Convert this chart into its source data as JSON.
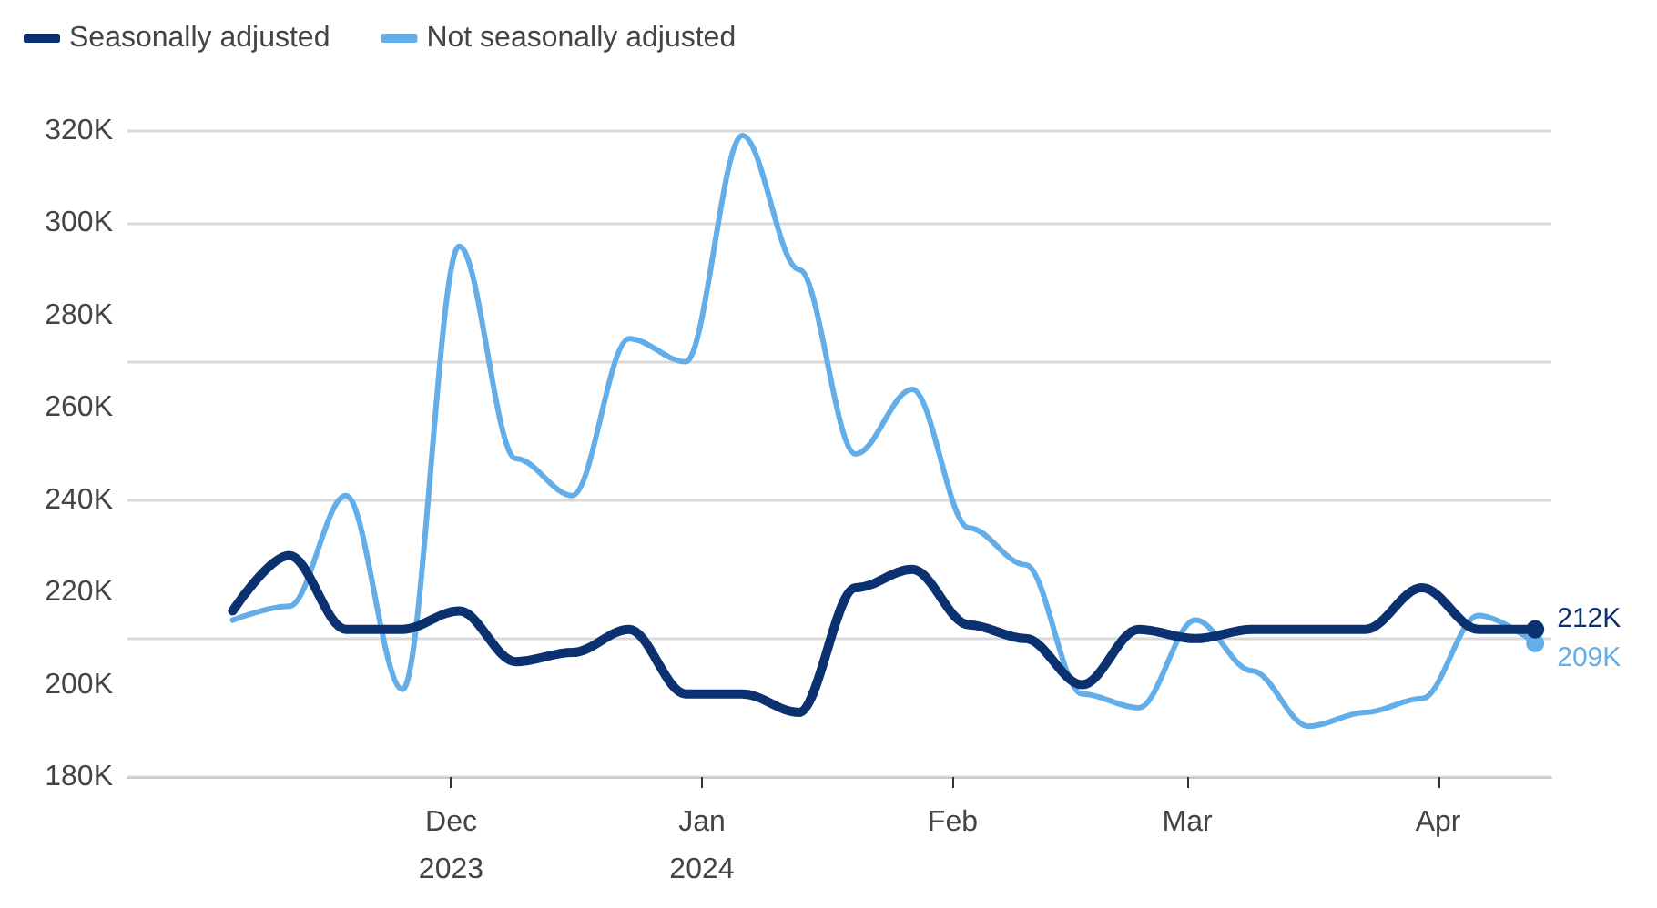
{
  "chart_data": {
    "type": "line",
    "legend": "top left",
    "grid": "y",
    "marker": "none",
    "line_style": "solid",
    "x": [
      "2023-11-04",
      "2023-11-11",
      "2023-11-18",
      "2023-11-25",
      "2023-12-02",
      "2023-12-09",
      "2023-12-16",
      "2023-12-23",
      "2023-12-30",
      "2024-01-06",
      "2024-01-13",
      "2024-01-20",
      "2024-01-27",
      "2024-02-03",
      "2024-02-10",
      "2024-02-17",
      "2024-02-24",
      "2024-03-02",
      "2024-03-09",
      "2024-03-16",
      "2024-03-23",
      "2024-03-30",
      "2024-04-06",
      "2024-04-13"
    ],
    "xlim": [
      "2023-10-22",
      "2024-04-15"
    ],
    "xticks": [
      {
        "value": "2023-12-01",
        "label": "Dec\n2023"
      },
      {
        "value": "2024-01-01",
        "label": "Jan\n2024"
      },
      {
        "value": "2024-02-01",
        "label": "Feb"
      },
      {
        "value": "2024-03-01",
        "label": "Mar"
      },
      {
        "value": "2024-04-01",
        "label": "Apr"
      }
    ],
    "ylim": [
      180000,
      320000
    ],
    "yticks": [
      {
        "value": 180000,
        "label": "180K"
      },
      {
        "value": 200000,
        "label": "200K"
      },
      {
        "value": 220000,
        "label": "220K"
      },
      {
        "value": 240000,
        "label": "240K"
      },
      {
        "value": 260000,
        "label": "260K"
      },
      {
        "value": 280000,
        "label": "280K"
      },
      {
        "value": 300000,
        "label": "300K"
      },
      {
        "value": 320000,
        "label": "320K"
      }
    ],
    "series": [
      {
        "name": "Seasonally adjusted",
        "color": "#0b3170",
        "values": [
          216000,
          228000,
          212000,
          212000,
          216000,
          205000,
          207000,
          212000,
          198000,
          198000,
          194000,
          221000,
          225000,
          213000,
          210000,
          200000,
          212000,
          210000,
          212000,
          212000,
          212000,
          221000,
          212000,
          212000
        ],
        "value_labels": [
          null,
          null,
          null,
          null,
          null,
          null,
          null,
          null,
          null,
          null,
          null,
          null,
          null,
          null,
          null,
          null,
          null,
          null,
          null,
          null,
          null,
          null,
          null,
          "212K"
        ]
      },
      {
        "name": "Not seasonally adjusted",
        "color": "#63aee8",
        "values": [
          214000,
          217000,
          241000,
          199000,
          295000,
          249000,
          241000,
          275000,
          270000,
          319000,
          290000,
          250000,
          264000,
          234000,
          226000,
          198000,
          195000,
          214000,
          203000,
          191000,
          194000,
          197000,
          215000,
          209000
        ],
        "value_labels": [
          null,
          null,
          null,
          null,
          null,
          null,
          null,
          null,
          null,
          null,
          null,
          null,
          null,
          null,
          null,
          null,
          null,
          null,
          null,
          null,
          null,
          null,
          null,
          "209K"
        ]
      }
    ]
  }
}
